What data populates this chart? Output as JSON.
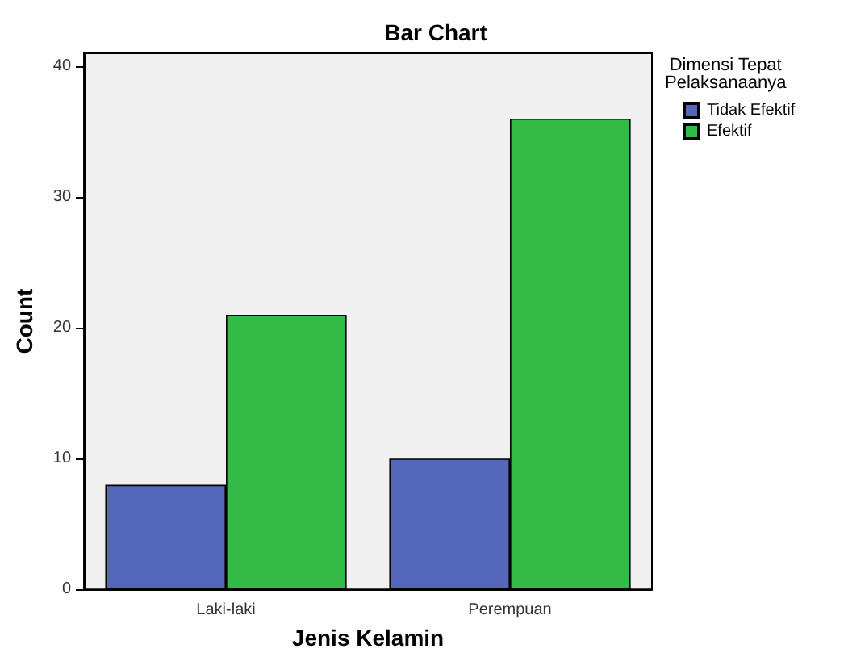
{
  "chart_data": {
    "type": "bar",
    "title": "Bar Chart",
    "xlabel": "Jenis Kelamin",
    "ylabel": "Count",
    "legend_title": "Dimensi Tepat\nPelaksanaanya",
    "categories": [
      "Laki-laki",
      "Perempuan"
    ],
    "series": [
      {
        "name": "Tidak Efektif",
        "color": "#5567ba",
        "values": [
          8,
          10
        ]
      },
      {
        "name": "Efektif",
        "color": "#33bb47",
        "values": [
          21,
          36
        ]
      }
    ],
    "ylim": [
      0,
      41
    ],
    "yticks": [
      0,
      10,
      20,
      30,
      40
    ],
    "grid": false,
    "legend": "right"
  }
}
